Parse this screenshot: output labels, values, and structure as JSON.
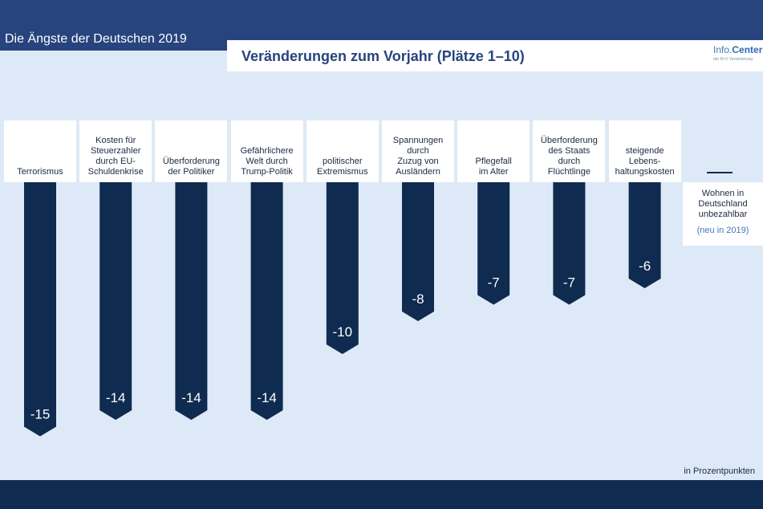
{
  "header": {
    "super_title": "Die Ängste der Deutschen 2019",
    "title": "Veränderungen zum Vorjahr (Plätze 1–10)",
    "brand_part1": "Info.",
    "brand_part2": "Center",
    "brand_sub": "der R+V Versicherung"
  },
  "unit_note": "in Prozentpunkten",
  "new_entry": {
    "label": "Wohnen in\nDeutschland\nunbezahlbar",
    "note": "(neu in 2019)"
  },
  "colors": {
    "bar": "#0f2b50",
    "header": "#27447e",
    "background": "#dde9f6"
  },
  "chart_data": {
    "type": "bar",
    "orientation": "vertical-downward",
    "title": "Veränderungen zum Vorjahr (Plätze 1–10)",
    "unit": "in Prozentpunkten",
    "categories": [
      "Terrorismus",
      "Kosten für\nSteuerzahler\ndurch EU-\nSchuldenkrise",
      "Überforderung\nder Politiker",
      "Gefährlichere\nWelt durch\nTrump-Politik",
      "politischer\nExtremismus",
      "Spannungen\ndurch\nZuzug von\nAusländern",
      "Pflegefall\nim Alter",
      "Überforderung\ndes Staats\ndurch\nFlüchtlinge",
      "steigende\nLebens-\nhaltungskosten"
    ],
    "values": [
      -15,
      -14,
      -14,
      -14,
      -10,
      -8,
      -7,
      -7,
      -6
    ],
    "value_labels": [
      "-15",
      "-14",
      "-14",
      "-14",
      "-10",
      "-8",
      "-7",
      "-7",
      "-6"
    ],
    "ylim": [
      -15,
      0
    ],
    "grid": false,
    "legend": "none"
  }
}
